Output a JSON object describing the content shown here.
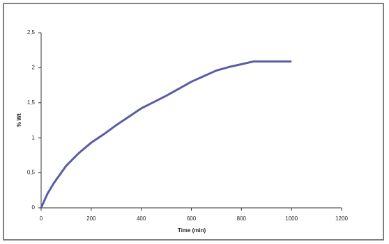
{
  "chart_data": {
    "type": "line",
    "x_label": "Time (min)",
    "y_label": "% Wt",
    "x": [
      0,
      25,
      50,
      100,
      150,
      200,
      250,
      300,
      350,
      400,
      450,
      500,
      550,
      600,
      650,
      700,
      750,
      800,
      850,
      900,
      950,
      1000
    ],
    "series": [
      {
        "color": "#5b5ba6",
        "values": [
          0,
          0.2,
          0.35,
          0.6,
          0.78,
          0.93,
          1.05,
          1.18,
          1.3,
          1.42,
          1.51,
          1.6,
          1.7,
          1.8,
          1.88,
          1.96,
          2.01,
          2.05,
          2.09,
          2.09,
          2.09,
          2.09
        ]
      }
    ],
    "xlim": [
      0,
      1200
    ],
    "xticks": [
      0,
      200,
      400,
      600,
      800,
      1000,
      1200
    ],
    "ylim": [
      0,
      2.5
    ],
    "yticks": [
      0,
      {
        "value": 0.5,
        "label": "0,5"
      },
      1,
      {
        "value": 1.5,
        "label": "1,5"
      },
      2,
      {
        "value": 2.5,
        "label": "2,5"
      }
    ],
    "grid": false
  }
}
